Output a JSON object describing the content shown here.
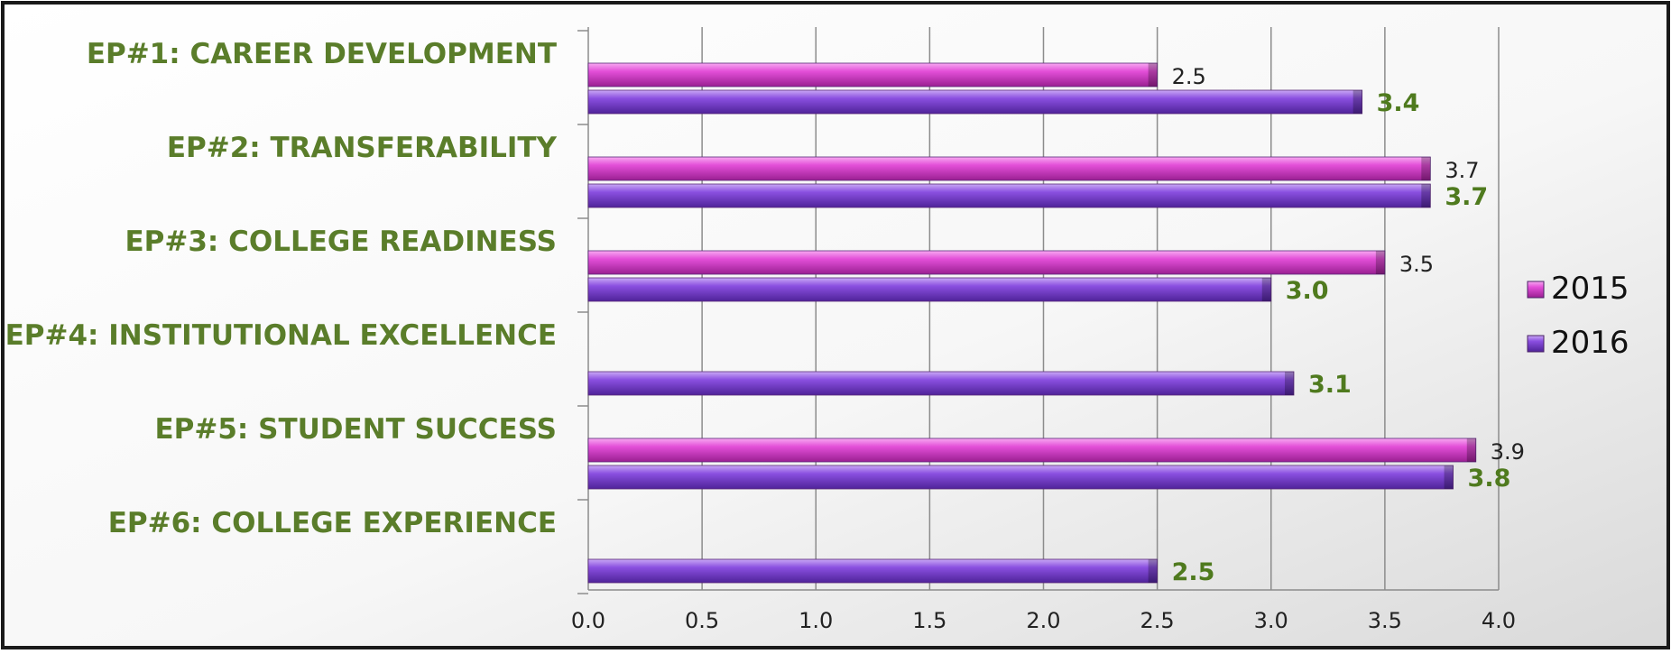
{
  "chart_data": {
    "type": "bar",
    "orientation": "horizontal",
    "categories": [
      "EP#1: CAREER DEVELOPMENT",
      "EP#2: TRANSFERABILITY",
      "EP#3: COLLEGE READINESS",
      "EP#4: INSTITUTIONAL EXCELLENCE",
      "EP#5: STUDENT SUCCESS",
      "EP#6: COLLEGE EXPERIENCE"
    ],
    "series": [
      {
        "name": "2015",
        "values": [
          2.5,
          3.7,
          3.5,
          null,
          3.9,
          null
        ],
        "labels": [
          "2.5",
          "3.7",
          "3.5",
          "",
          "3.9",
          ""
        ],
        "color": "#e34fd8",
        "label_color": "#222222"
      },
      {
        "name": "2016",
        "values": [
          3.4,
          3.7,
          3.0,
          3.1,
          3.8,
          2.5
        ],
        "labels": [
          "3.4",
          "3.7",
          "3.0",
          "3.1",
          "3.8",
          "2.5"
        ],
        "color": "#8a4fe0",
        "label_color": "#4f7a1e"
      }
    ],
    "xlim": [
      0,
      4
    ],
    "x_ticks": [
      "0.0",
      "0.5",
      "1.0",
      "1.5",
      "2.0",
      "2.5",
      "3.0",
      "3.5",
      "4.0"
    ],
    "grid": true,
    "legend_position": "right",
    "category_label_color": "#5a7d2a"
  }
}
